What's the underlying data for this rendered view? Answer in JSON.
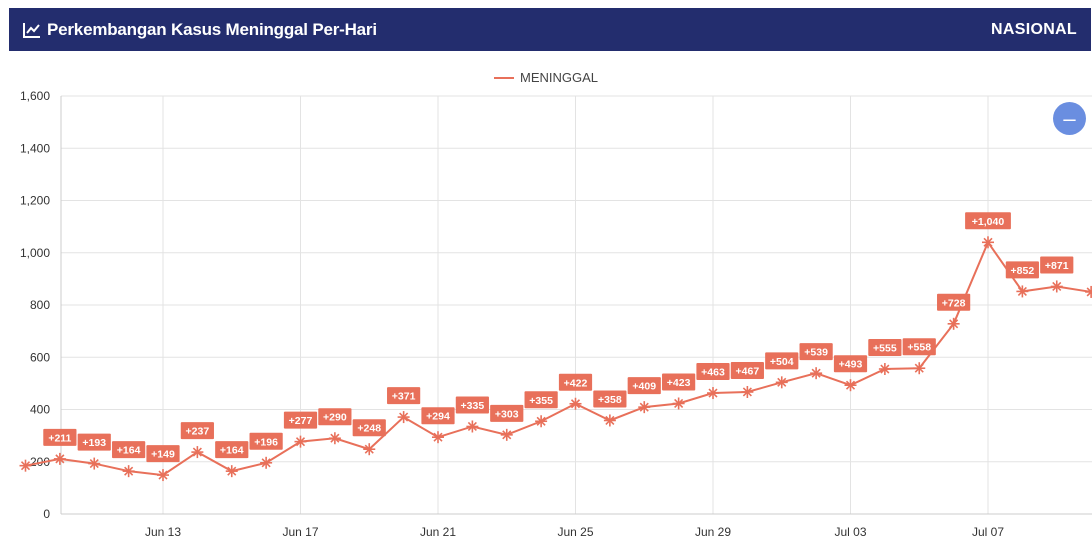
{
  "header": {
    "title": "Perkembangan Kasus Meninggal Per-Hari",
    "region": "NASIONAL",
    "icon": "line-chart-icon"
  },
  "controls": {
    "zoom_out_icon": "minus-icon",
    "zoom_out_symbol": "–"
  },
  "chart_data": {
    "type": "line",
    "title": "",
    "xlabel": "",
    "ylabel": "",
    "legend": {
      "placement": "top-center",
      "entries": [
        "MENINGGAL"
      ]
    },
    "color": "#e8705a",
    "grid": true,
    "ylim": [
      0,
      1600
    ],
    "yticks": [
      0,
      200,
      400,
      600,
      800,
      1000,
      1200,
      1400,
      1600
    ],
    "ytick_labels": [
      "0",
      "200",
      "400",
      "600",
      "800",
      "1,000",
      "1,200",
      "1,400",
      "1,600"
    ],
    "xticks": [
      "Jun 13",
      "Jun 17",
      "Jun 21",
      "Jun 25",
      "Jun 29",
      "Jul 03",
      "Jul 07"
    ],
    "series": [
      {
        "name": "MENINGGAL",
        "x": [
          "Jun 09",
          "Jun 10",
          "Jun 11",
          "Jun 12",
          "Jun 13",
          "Jun 14",
          "Jun 15",
          "Jun 16",
          "Jun 17",
          "Jun 18",
          "Jun 19",
          "Jun 20",
          "Jun 21",
          "Jun 22",
          "Jun 23",
          "Jun 24",
          "Jun 25",
          "Jun 26",
          "Jun 27",
          "Jun 28",
          "Jun 29",
          "Jun 30",
          "Jul 01",
          "Jul 02",
          "Jul 03",
          "Jul 04",
          "Jul 05",
          "Jul 06",
          "Jul 07",
          "Jul 08",
          "Jul 09",
          "Jul 10"
        ],
        "values": [
          185,
          211,
          193,
          164,
          149,
          237,
          164,
          196,
          277,
          290,
          248,
          371,
          294,
          335,
          303,
          355,
          422,
          358,
          409,
          423,
          463,
          467,
          504,
          539,
          493,
          555,
          558,
          728,
          1040,
          852,
          871,
          850
        ],
        "labels": [
          "",
          "+211",
          "+193",
          "+164",
          "+149",
          "+237",
          "+164",
          "+196",
          "+277",
          "+290",
          "+248",
          "+371",
          "+294",
          "+335",
          "+303",
          "+355",
          "+422",
          "+358",
          "+409",
          "+423",
          "+463",
          "+467",
          "+504",
          "+539",
          "+493",
          "+555",
          "+558",
          "+728",
          "+1,040",
          "+852",
          "+871",
          ""
        ]
      }
    ]
  }
}
